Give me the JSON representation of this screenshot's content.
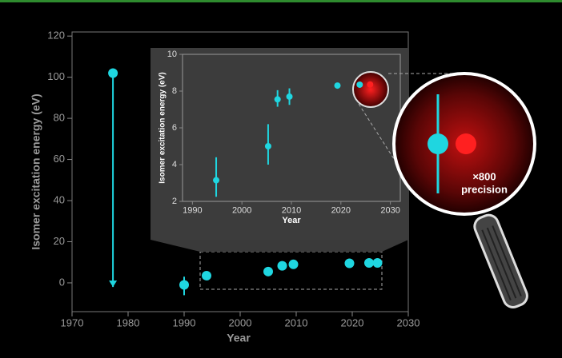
{
  "chart_data": [
    {
      "type": "scatter",
      "x_label": "Year",
      "y_label": "Isomer excitation energy (eV)",
      "xlim": [
        1970,
        2030
      ],
      "ylim": [
        -14,
        122
      ],
      "xticks": [
        1970,
        1980,
        1990,
        2000,
        2010,
        2020,
        2030
      ],
      "yticks": [
        0,
        20,
        40,
        60,
        80,
        100,
        120
      ],
      "series": [
        {
          "color": "#1fd6e0",
          "x": [
            1977.3,
            1990,
            1994,
            2005,
            2007.5,
            2009.5,
            2019.5,
            2023,
            2024.5
          ],
          "values": [
            102,
            -1,
            3.5,
            5.5,
            8.3,
            9,
            9.5,
            9.7,
            9.7
          ],
          "error_low": [
            -2,
            -6,
            null,
            null,
            null,
            null,
            null,
            null,
            null
          ],
          "error_high": [
            null,
            3,
            null,
            null,
            null,
            null,
            null,
            null,
            null
          ]
        }
      ]
    },
    {
      "type": "scatter",
      "x_label": "Year",
      "y_label": "Isomer excitation energy (eV)",
      "xlim": [
        1988,
        2032
      ],
      "ylim": [
        2,
        10
      ],
      "xticks": [
        1990,
        2000,
        2010,
        2020,
        2030
      ],
      "yticks": [
        2,
        4,
        6,
        8,
        10
      ],
      "annotations": [
        "×800",
        "precision"
      ],
      "series": [
        {
          "color": "#1fd6e0",
          "x": [
            1994.8,
            2005.3,
            2007.2,
            2009.6,
            2019.3,
            2023.8
          ],
          "values": [
            3.15,
            5.0,
            7.55,
            7.7,
            8.3,
            8.35
          ],
          "error_low": [
            2.25,
            4.0,
            7.15,
            7.25,
            null,
            null
          ],
          "error_high": [
            4.4,
            6.2,
            8.05,
            8.15,
            null,
            null
          ]
        },
        {
          "color": "#ff2020",
          "x": [
            2025.9
          ],
          "values": [
            8.36
          ],
          "error_low": [
            null
          ],
          "error_high": [
            null
          ]
        }
      ]
    }
  ]
}
